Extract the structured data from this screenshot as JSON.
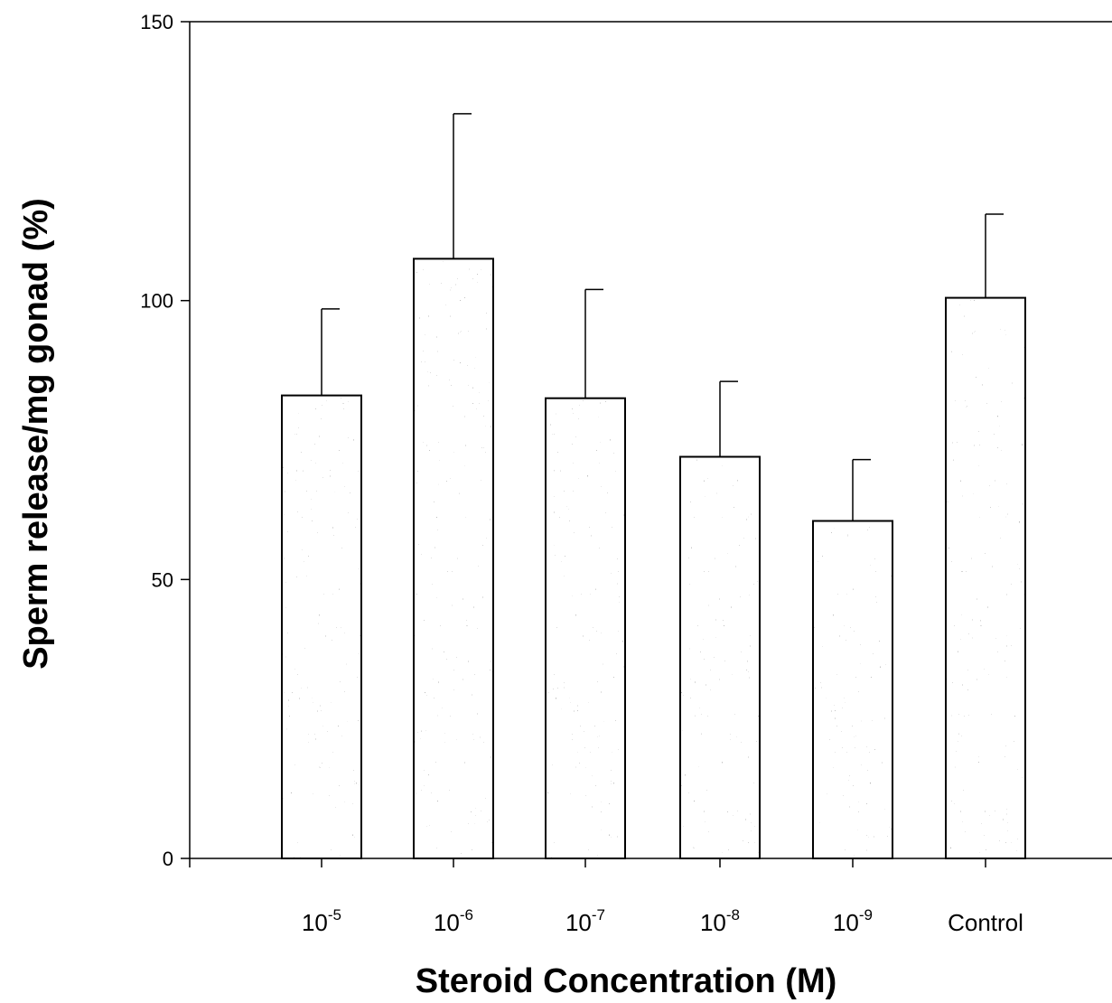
{
  "chart_data": {
    "type": "bar",
    "title": "",
    "xlabel": "Steroid Concentration (M)",
    "ylabel": "Sperm release/mg gonad (%)",
    "categories": [
      {
        "base": "10",
        "exp": "-5"
      },
      {
        "base": "10",
        "exp": "-6"
      },
      {
        "base": "10",
        "exp": "-7"
      },
      {
        "base": "10",
        "exp": "-8"
      },
      {
        "base": "10",
        "exp": "-9"
      },
      {
        "base": "Control",
        "exp": ""
      }
    ],
    "values": [
      83,
      107.5,
      82.5,
      72,
      60.5,
      100.5
    ],
    "errors": [
      15.5,
      26,
      19.5,
      13.5,
      11,
      15
    ],
    "ylim": [
      0,
      150
    ],
    "yticks": [
      0,
      50,
      100,
      150
    ],
    "grid": false,
    "legend": "none",
    "bar_fill": "#b8b8b8",
    "bar_stroke": "#000000"
  }
}
